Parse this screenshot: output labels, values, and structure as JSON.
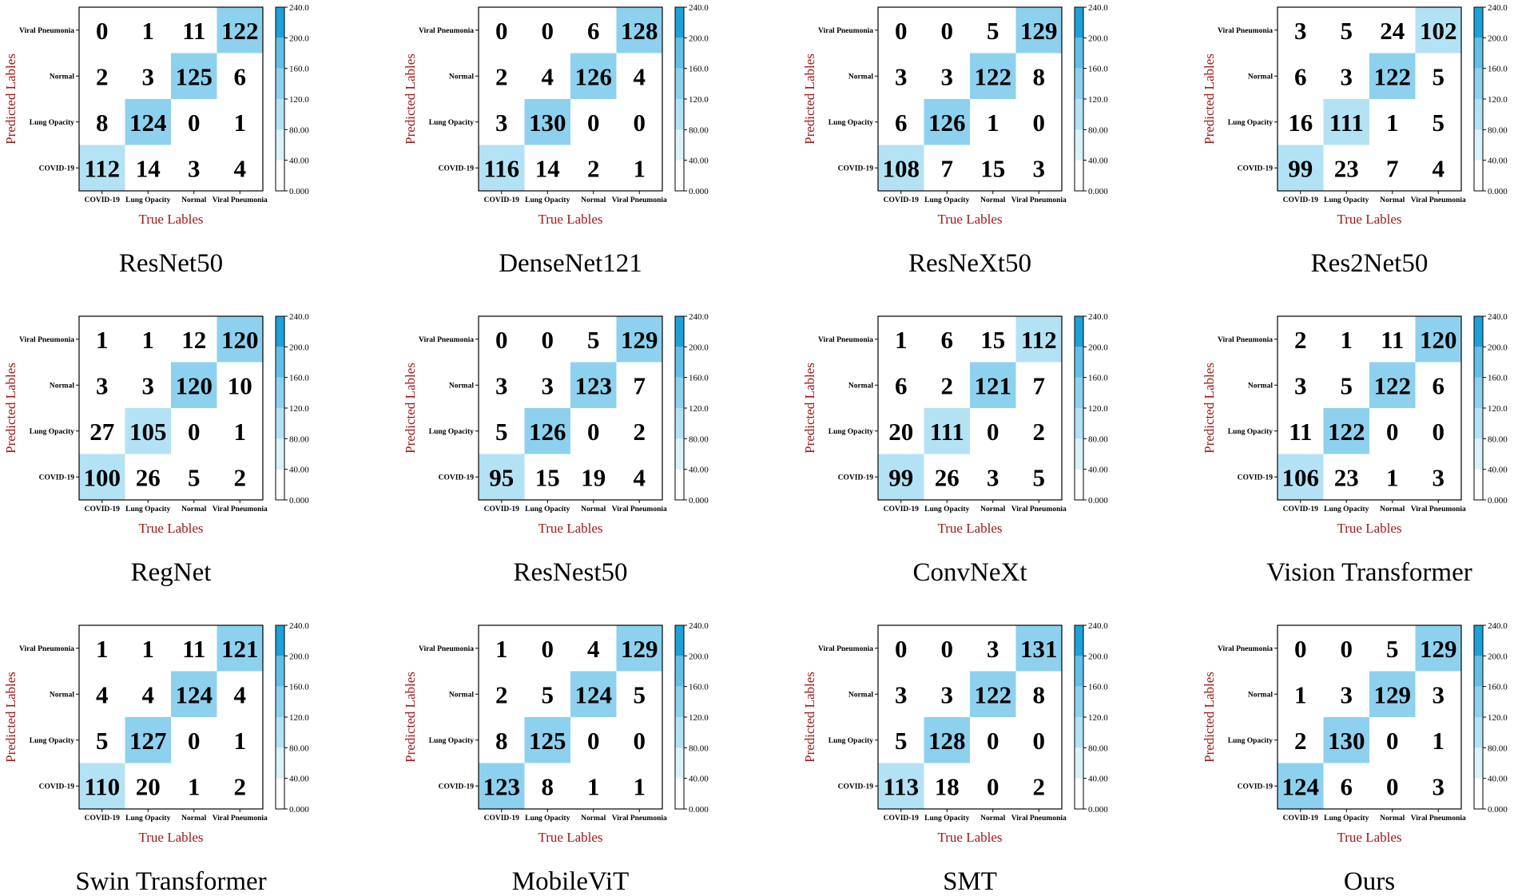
{
  "figure": {
    "colorbar": {
      "min": 0,
      "max": 240,
      "ticks": [
        "240.0",
        "200.0",
        "160.0",
        "120.0",
        "80.00",
        "40.00",
        "0.000"
      ]
    },
    "colors": [
      "#ffffff",
      "#dbf2fb",
      "#b4e2f5",
      "#8ed1ee",
      "#63bfe6",
      "#3fb0df",
      "#1ea0d9"
    ],
    "axis_text_color": "#a01818"
  },
  "chart_data": [
    {
      "type": "heatmap",
      "title": "ResNet50",
      "xlabel": "True Lables",
      "ylabel": "Predicted Lables",
      "x_categories": [
        "COVID-19",
        "Lung Opacity",
        "Normal",
        "Viral Pneumonia"
      ],
      "y_categories": [
        "Viral Pneumonia",
        "Normal",
        "Lung Opacity",
        "COVID-19"
      ],
      "values": [
        [
          0,
          1,
          11,
          122
        ],
        [
          2,
          3,
          125,
          6
        ],
        [
          8,
          124,
          0,
          1
        ],
        [
          112,
          14,
          3,
          4
        ]
      ]
    },
    {
      "type": "heatmap",
      "title": "DenseNet121",
      "xlabel": "True Lables",
      "ylabel": "Predicted Lables",
      "x_categories": [
        "COVID-19",
        "Lung Opacity",
        "Normal",
        "Viral Pneumonia"
      ],
      "y_categories": [
        "Viral Pneumonia",
        "Normal",
        "Lung Opacity",
        "COVID-19"
      ],
      "values": [
        [
          0,
          0,
          6,
          128
        ],
        [
          2,
          4,
          126,
          4
        ],
        [
          3,
          130,
          0,
          0
        ],
        [
          116,
          14,
          2,
          1
        ]
      ]
    },
    {
      "type": "heatmap",
      "title": "ResNeXt50",
      "xlabel": "True Lables",
      "ylabel": "Predicted Lables",
      "x_categories": [
        "COVID-19",
        "Lung Opacity",
        "Normal",
        "Viral Pneumonia"
      ],
      "y_categories": [
        "Viral Pneumonia",
        "Normal",
        "Lung Opacity",
        "COVID-19"
      ],
      "values": [
        [
          0,
          0,
          5,
          129
        ],
        [
          3,
          3,
          122,
          8
        ],
        [
          6,
          126,
          1,
          0
        ],
        [
          108,
          7,
          15,
          3
        ]
      ]
    },
    {
      "type": "heatmap",
      "title": "Res2Net50",
      "xlabel": "True Lables",
      "ylabel": "Predicted Lables",
      "x_categories": [
        "COVID-19",
        "Lung Opacity",
        "Normal",
        "Viral Pneumonia"
      ],
      "y_categories": [
        "Viral Pneumonia",
        "Normal",
        "Lung Opacity",
        "COVID-19"
      ],
      "values": [
        [
          3,
          5,
          24,
          102
        ],
        [
          6,
          3,
          122,
          5
        ],
        [
          16,
          111,
          1,
          5
        ],
        [
          99,
          23,
          7,
          4
        ]
      ]
    },
    {
      "type": "heatmap",
      "title": "RegNet",
      "xlabel": "True Lables",
      "ylabel": "Predicted Lables",
      "x_categories": [
        "COVID-19",
        "Lung Opacity",
        "Normal",
        "Viral Pneumonia"
      ],
      "y_categories": [
        "Viral Pneumonia",
        "Normal",
        "Lung Opacity",
        "COVID-19"
      ],
      "values": [
        [
          1,
          1,
          12,
          120
        ],
        [
          3,
          3,
          120,
          10
        ],
        [
          27,
          105,
          0,
          1
        ],
        [
          100,
          26,
          5,
          2
        ]
      ]
    },
    {
      "type": "heatmap",
      "title": "ResNest50",
      "xlabel": "True Lables",
      "ylabel": "Predicted Lables",
      "x_categories": [
        "COVID-19",
        "Lung Opacity",
        "Normal",
        "Viral Pneumonia"
      ],
      "y_categories": [
        "Viral Pneumonia",
        "Normal",
        "Lung Opacity",
        "COVID-19"
      ],
      "values": [
        [
          0,
          0,
          5,
          129
        ],
        [
          3,
          3,
          123,
          7
        ],
        [
          5,
          126,
          0,
          2
        ],
        [
          95,
          15,
          19,
          4
        ]
      ]
    },
    {
      "type": "heatmap",
      "title": "ConvNeXt",
      "xlabel": "True Lables",
      "ylabel": "Predicted Lables",
      "x_categories": [
        "COVID-19",
        "Lung Opacity",
        "Normal",
        "Viral Pneumonia"
      ],
      "y_categories": [
        "Viral Pneumonia",
        "Normal",
        "Lung Opacity",
        "COVID-19"
      ],
      "values": [
        [
          1,
          6,
          15,
          112
        ],
        [
          6,
          2,
          121,
          7
        ],
        [
          20,
          111,
          0,
          2
        ],
        [
          99,
          26,
          3,
          5
        ]
      ]
    },
    {
      "type": "heatmap",
      "title": "Vision Transformer",
      "xlabel": "True Lables",
      "ylabel": "Predicted Lables",
      "x_categories": [
        "COVID-19",
        "Lung Opacity",
        "Normal",
        "Viral Pneumonia"
      ],
      "y_categories": [
        "Viral Pneumonia",
        "Normal",
        "Lung Opacity",
        "COVID-19"
      ],
      "values": [
        [
          2,
          1,
          11,
          120
        ],
        [
          3,
          5,
          122,
          6
        ],
        [
          11,
          122,
          0,
          0
        ],
        [
          106,
          23,
          1,
          3
        ]
      ]
    },
    {
      "type": "heatmap",
      "title": "Swin Transformer",
      "xlabel": "True Lables",
      "ylabel": "Predicted Lables",
      "x_categories": [
        "COVID-19",
        "Lung Opacity",
        "Normal",
        "Viral Pneumonia"
      ],
      "y_categories": [
        "Viral Pneumonia",
        "Normal",
        "Lung Opacity",
        "COVID-19"
      ],
      "values": [
        [
          1,
          1,
          11,
          121
        ],
        [
          4,
          4,
          124,
          4
        ],
        [
          5,
          127,
          0,
          1
        ],
        [
          110,
          20,
          1,
          2
        ]
      ]
    },
    {
      "type": "heatmap",
      "title": "MobileViT",
      "xlabel": "True Lables",
      "ylabel": "Predicted Lables",
      "x_categories": [
        "COVID-19",
        "Lung Opacity",
        "Normal",
        "Viral Pneumonia"
      ],
      "y_categories": [
        "Viral Pneumonia",
        "Normal",
        "Lung Opacity",
        "COVID-19"
      ],
      "values": [
        [
          1,
          0,
          4,
          129
        ],
        [
          2,
          5,
          124,
          5
        ],
        [
          8,
          125,
          0,
          0
        ],
        [
          123,
          8,
          1,
          1
        ]
      ]
    },
    {
      "type": "heatmap",
      "title": "SMT",
      "xlabel": "True Lables",
      "ylabel": "Predicted Lables",
      "x_categories": [
        "COVID-19",
        "Lung Opacity",
        "Normal",
        "Viral Pneumonia"
      ],
      "y_categories": [
        "Viral Pneumonia",
        "Normal",
        "Lung Opacity",
        "COVID-19"
      ],
      "values": [
        [
          0,
          0,
          3,
          131
        ],
        [
          3,
          3,
          122,
          8
        ],
        [
          5,
          128,
          0,
          0
        ],
        [
          113,
          18,
          0,
          2
        ]
      ]
    },
    {
      "type": "heatmap",
      "title": "Ours",
      "xlabel": "True Lables",
      "ylabel": "Predicted Lables",
      "x_categories": [
        "COVID-19",
        "Lung Opacity",
        "Normal",
        "Viral Pneumonia"
      ],
      "y_categories": [
        "Viral Pneumonia",
        "Normal",
        "Lung Opacity",
        "COVID-19"
      ],
      "values": [
        [
          0,
          0,
          5,
          129
        ],
        [
          1,
          3,
          129,
          3
        ],
        [
          2,
          130,
          0,
          1
        ],
        [
          124,
          6,
          0,
          3
        ]
      ]
    }
  ]
}
